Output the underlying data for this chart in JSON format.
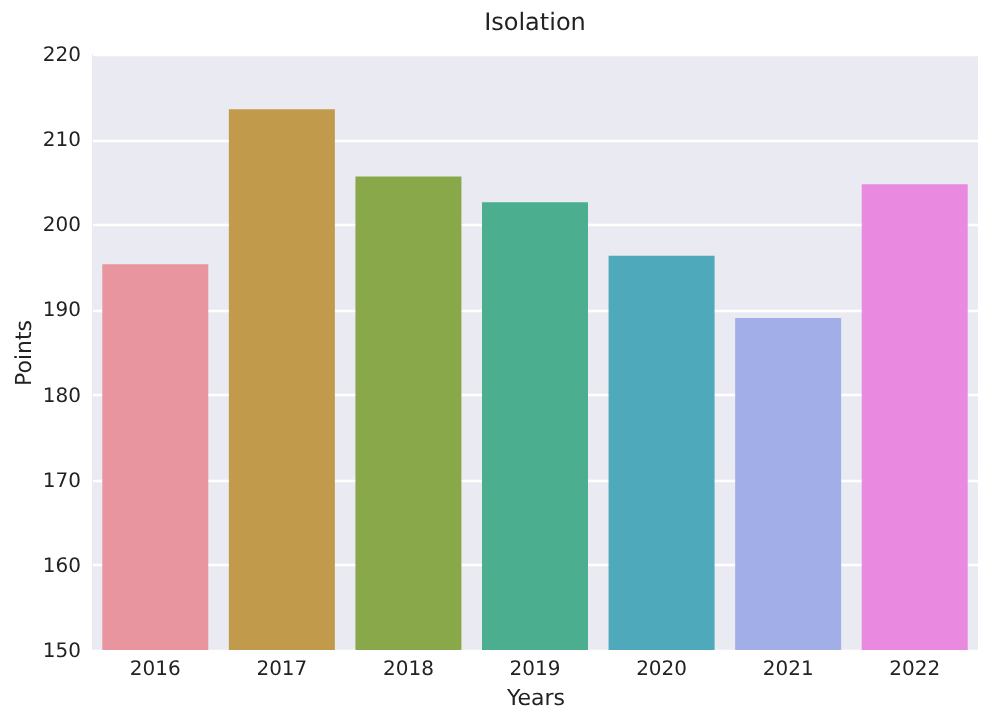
{
  "chart_data": {
    "type": "bar",
    "title": "Isolation",
    "xlabel": "Years",
    "ylabel": "Points",
    "categories": [
      "2016",
      "2017",
      "2018",
      "2019",
      "2020",
      "2021",
      "2022"
    ],
    "values": [
      195.3,
      213.5,
      205.6,
      202.6,
      196.3,
      189.0,
      204.7
    ],
    "colors": [
      "#e8959f",
      "#c19a4b",
      "#89a84a",
      "#4aae8f",
      "#4eaaba",
      "#a2aee8",
      "#e98ae0"
    ],
    "ylim": [
      150,
      220
    ],
    "yticks": [
      150,
      160,
      170,
      180,
      190,
      200,
      210,
      220
    ],
    "grid": "y"
  }
}
